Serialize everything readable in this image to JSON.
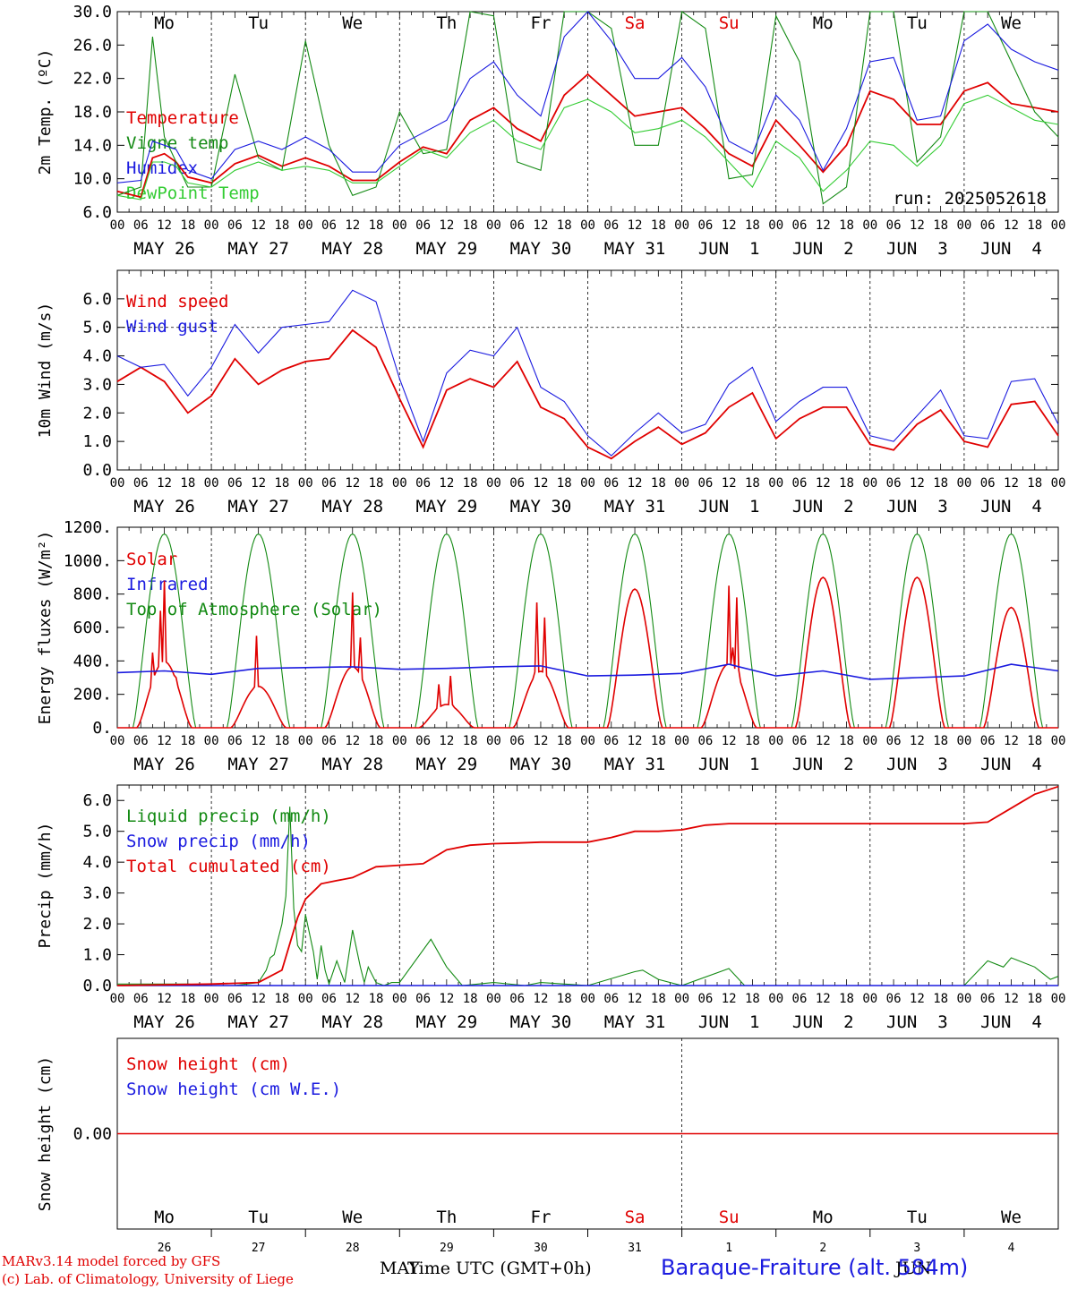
{
  "footer": {
    "model": "MARv3.14 model forced by GFS",
    "copyright": "(c) Lab. of Climatology, University of Liege",
    "xlabel": "Time UTC (GMT+0h)",
    "station": "Baraque-Fraiture (alt. 584m)",
    "month_left": "MAY",
    "month_right": "JUN"
  },
  "chart_data": [
    {
      "type": "line",
      "ylabel": "2m Temp. (ºC)",
      "ylim": [
        6,
        30
      ],
      "yticks": [
        "30.0",
        "26.0",
        "22.0",
        "18.0",
        "14.0",
        "10.0",
        "6.0"
      ],
      "annotation": "run: 2025052618",
      "weekdays": [
        "Mo",
        "Tu",
        "We",
        "Th",
        "Fr",
        "Sa",
        "Su",
        "Mo",
        "Tu",
        "We"
      ],
      "weekday_colors": [
        "#000000",
        "#000000",
        "#000000",
        "#000000",
        "#000000",
        "#e00000",
        "#e00000",
        "#000000",
        "#000000",
        "#000000"
      ],
      "date_labels": [
        "MAY 26",
        "MAY 27",
        "MAY 28",
        "MAY 29",
        "MAY 30",
        "MAY 31",
        "JUN  1",
        "JUN  2",
        "JUN  3",
        "JUN  4"
      ],
      "hour_labels": [
        "00",
        "06",
        "12",
        "18"
      ],
      "x_hours": [
        0,
        6,
        9,
        12,
        15,
        18,
        24,
        30,
        36,
        42,
        48,
        54,
        60,
        66,
        72,
        78,
        84,
        90,
        96,
        102,
        108,
        114,
        120,
        126,
        132,
        138,
        144,
        150,
        156,
        162,
        168,
        174,
        180,
        186,
        192,
        198,
        204,
        210,
        216,
        222,
        228,
        234,
        240
      ],
      "series": [
        {
          "name": "Temperature",
          "color": "#e00000",
          "values": [
            8.5,
            7.8,
            12.5,
            13.0,
            12.0,
            10.2,
            9.5,
            11.8,
            12.8,
            11.5,
            12.5,
            11.5,
            9.8,
            9.8,
            12.0,
            13.8,
            13.0,
            17.0,
            18.5,
            16.0,
            14.5,
            20.0,
            22.5,
            20.0,
            17.5,
            18.0,
            18.5,
            16.0,
            13.0,
            11.5,
            17.0,
            14.0,
            10.8,
            14.0,
            20.5,
            19.5,
            16.5,
            16.5,
            20.5,
            21.5,
            19.0,
            18.5,
            18.0
          ]
        },
        {
          "name": "Vigne temp",
          "color": "#138a13",
          "values": [
            8.0,
            9.0,
            27.0,
            15.0,
            12.0,
            9.0,
            9.0,
            22.5,
            12.5,
            11.0,
            26.5,
            14.0,
            8.0,
            9.0,
            18.0,
            13.0,
            13.5,
            30.0,
            29.5,
            12.0,
            11.0,
            30.0,
            30.0,
            28.0,
            14.0,
            14.0,
            30.0,
            28.0,
            10.0,
            10.5,
            29.5,
            24.0,
            7.0,
            9.0,
            30.0,
            30.0,
            12.0,
            15.0,
            30.0,
            30.0,
            24.0,
            18.0,
            15.0
          ]
        },
        {
          "name": "Humidex",
          "color": "#1a1adf",
          "values": [
            9.5,
            9.8,
            14.5,
            14.0,
            13.5,
            11.0,
            10.0,
            13.5,
            14.5,
            13.5,
            15.0,
            13.5,
            10.8,
            10.8,
            14.0,
            15.5,
            17.0,
            22.0,
            24.0,
            20.0,
            17.5,
            27.0,
            30.0,
            26.5,
            22.0,
            22.0,
            24.5,
            21.0,
            14.5,
            13.0,
            20.0,
            17.0,
            11.0,
            16.0,
            24.0,
            24.5,
            17.0,
            17.5,
            26.5,
            28.5,
            25.5,
            24.0,
            23.0
          ]
        },
        {
          "name": "DewPoint Temp",
          "color": "#33cc33",
          "values": [
            8.0,
            7.5,
            12.0,
            12.0,
            11.5,
            9.5,
            9.0,
            11.0,
            12.0,
            11.0,
            11.5,
            11.0,
            9.5,
            9.5,
            11.5,
            13.5,
            12.5,
            15.5,
            17.0,
            14.5,
            13.5,
            18.5,
            19.5,
            18.0,
            15.5,
            16.0,
            17.0,
            15.0,
            12.0,
            9.0,
            14.5,
            12.5,
            8.5,
            11.0,
            14.5,
            14.0,
            11.5,
            14.0,
            19.0,
            20.0,
            18.5,
            17.0,
            16.5
          ]
        }
      ]
    },
    {
      "type": "line",
      "ylabel": "10m Wind (m/s)",
      "ylim": [
        0,
        7
      ],
      "yticks": [
        "6.0",
        "5.0",
        "4.0",
        "3.0",
        "2.0",
        "1.0",
        "0.0"
      ],
      "reference_line": 5,
      "date_labels": [
        "MAY 26",
        "MAY 27",
        "MAY 28",
        "MAY 29",
        "MAY 30",
        "MAY 31",
        "JUN  1",
        "JUN  2",
        "JUN  3",
        "JUN  4"
      ],
      "hour_labels": [
        "00",
        "06",
        "12",
        "18"
      ],
      "x_hours": [
        0,
        6,
        12,
        18,
        24,
        30,
        36,
        42,
        48,
        54,
        60,
        66,
        72,
        78,
        84,
        90,
        96,
        102,
        108,
        114,
        120,
        126,
        132,
        138,
        144,
        150,
        156,
        162,
        168,
        174,
        180,
        186,
        192,
        198,
        204,
        210,
        216,
        222,
        228,
        234,
        240
      ],
      "series": [
        {
          "name": "Wind speed",
          "color": "#e00000",
          "values": [
            3.1,
            3.6,
            3.1,
            2.0,
            2.6,
            3.9,
            3.0,
            3.5,
            3.8,
            3.9,
            4.9,
            4.3,
            2.5,
            0.8,
            2.8,
            3.2,
            2.9,
            3.8,
            2.2,
            1.8,
            0.8,
            0.4,
            1.0,
            1.5,
            0.9,
            1.3,
            2.2,
            2.7,
            1.1,
            1.8,
            2.2,
            2.2,
            0.9,
            0.7,
            1.6,
            2.1,
            1.0,
            0.8,
            2.3,
            2.4,
            1.2
          ]
        },
        {
          "name": "Wind gust",
          "color": "#1a1adf",
          "values": [
            4.0,
            3.6,
            3.7,
            2.6,
            3.6,
            5.1,
            4.1,
            5.0,
            5.1,
            5.2,
            6.3,
            5.9,
            3.2,
            1.0,
            3.4,
            4.2,
            4.0,
            5.0,
            2.9,
            2.4,
            1.2,
            0.5,
            1.3,
            2.0,
            1.3,
            1.6,
            3.0,
            3.6,
            1.7,
            2.4,
            2.9,
            2.9,
            1.2,
            1.0,
            1.9,
            2.8,
            1.2,
            1.1,
            3.1,
            3.2,
            1.6
          ]
        }
      ]
    },
    {
      "type": "line",
      "ylabel": "Energy fluxes (W/m²)",
      "ylim": [
        0,
        1200
      ],
      "yticks": [
        "1200.",
        "1000.",
        "800.",
        "600.",
        "400.",
        "200.",
        "0."
      ],
      "date_labels": [
        "MAY 26",
        "MAY 27",
        "MAY 28",
        "MAY 29",
        "MAY 30",
        "MAY 31",
        "JUN  1",
        "JUN  2",
        "JUN  3",
        "JUN  4"
      ],
      "hour_labels": [
        "00",
        "06",
        "12",
        "18"
      ],
      "toa_peak": 1160,
      "series": [
        {
          "name": "Solar",
          "color": "#e00000",
          "days": [
            {
              "peak": 880,
              "spikes": [
                [
                  9,
                  450
                ],
                [
                  11,
                  700
                ],
                [
                  12,
                  880
                ],
                [
                  15,
                  300
                ]
              ]
            },
            {
              "peak": 550,
              "spikes": [
                [
                  11.5,
                  550
                ]
              ]
            },
            {
              "peak": 810,
              "spikes": [
                [
                  12,
                  810
                ],
                [
                  14,
                  540
                ]
              ]
            },
            {
              "peak": 310,
              "spikes": [
                [
                  10,
                  260
                ],
                [
                  13,
                  310
                ]
              ]
            },
            {
              "peak": 750,
              "spikes": [
                [
                  11,
                  750
                ],
                [
                  13,
                  660
                ]
              ]
            },
            {
              "peak": 830,
              "spikes": []
            },
            {
              "peak": 850,
              "spikes": [
                [
                  12,
                  850
                ],
                [
                  13,
                  480
                ],
                [
                  14,
                  780
                ]
              ]
            },
            {
              "peak": 900,
              "spikes": []
            },
            {
              "peak": 900,
              "spikes": []
            },
            {
              "peak": 720,
              "spikes": []
            }
          ]
        },
        {
          "name": "Infrared",
          "color": "#1a1adf",
          "x_hours": [
            0,
            12,
            24,
            36,
            48,
            60,
            72,
            84,
            96,
            108,
            120,
            132,
            144,
            156,
            168,
            180,
            192,
            204,
            216,
            228,
            240
          ],
          "values": [
            330,
            340,
            320,
            355,
            360,
            365,
            350,
            355,
            365,
            370,
            310,
            315,
            325,
            380,
            310,
            340,
            290,
            300,
            310,
            380,
            340
          ]
        },
        {
          "name": "Top of Atmosphere (Solar)",
          "color": "#138a13"
        }
      ]
    },
    {
      "type": "line",
      "ylabel": "Precip (mm/h)",
      "ylim": [
        0,
        6.5
      ],
      "yticks": [
        "6.0",
        "5.0",
        "4.0",
        "3.0",
        "2.0",
        "1.0",
        "0.0"
      ],
      "date_labels": [
        "MAY 26",
        "MAY 27",
        "MAY 28",
        "MAY 29",
        "MAY 30",
        "MAY 31",
        "JUN  1",
        "JUN  2",
        "JUN  3",
        "JUN  4"
      ],
      "hour_labels": [
        "00",
        "06",
        "12",
        "18"
      ],
      "series": [
        {
          "name": "Liquid precip (mm/h)",
          "color": "#138a13",
          "x_hours": [
            0,
            6,
            12,
            18,
            24,
            30,
            36,
            38,
            39,
            40,
            42,
            43,
            44,
            45,
            46,
            47,
            48,
            50,
            51,
            52,
            53,
            54,
            56,
            58,
            60,
            62,
            63,
            64,
            66,
            68,
            70,
            72,
            80,
            84,
            88,
            96,
            104,
            108,
            120,
            132,
            134,
            138,
            144,
            156,
            160,
            168,
            180,
            192,
            204,
            216,
            222,
            226,
            228,
            234,
            238,
            240
          ],
          "values": [
            0.05,
            0.05,
            0.05,
            0.05,
            0.0,
            0.0,
            0.1,
            0.5,
            0.9,
            1.0,
            2.0,
            2.9,
            5.8,
            2.5,
            1.3,
            1.1,
            2.3,
            1.1,
            0.2,
            1.3,
            0.5,
            0.05,
            0.8,
            0.1,
            1.8,
            0.6,
            0.1,
            0.6,
            0.1,
            0.0,
            0.1,
            0.1,
            1.5,
            0.6,
            0.0,
            0.1,
            0.0,
            0.1,
            0.0,
            0.45,
            0.5,
            0.2,
            0.0,
            0.55,
            0.0,
            0.0,
            0.0,
            0.0,
            0.0,
            0.0,
            0.8,
            0.6,
            0.9,
            0.6,
            0.2,
            0.3
          ]
        },
        {
          "name": "Snow precip (mm/h)",
          "color": "#1a1adf",
          "values": [
            0.0,
            0.0
          ]
        },
        {
          "name": "Total cumulated (cm)",
          "color": "#e00000",
          "x_hours": [
            0,
            24,
            36,
            42,
            46,
            48,
            52,
            56,
            60,
            66,
            72,
            78,
            84,
            90,
            96,
            102,
            108,
            114,
            120,
            126,
            132,
            138,
            144,
            150,
            156,
            168,
            180,
            192,
            204,
            216,
            222,
            228,
            234,
            240
          ],
          "values": [
            0.0,
            0.05,
            0.1,
            0.5,
            2.2,
            2.8,
            3.3,
            3.4,
            3.5,
            3.85,
            3.9,
            3.95,
            4.4,
            4.55,
            4.6,
            4.62,
            4.65,
            4.65,
            4.65,
            4.8,
            5.0,
            5.0,
            5.05,
            5.2,
            5.25,
            5.25,
            5.25,
            5.25,
            5.25,
            5.25,
            5.3,
            5.75,
            6.2,
            6.45
          ]
        }
      ]
    },
    {
      "type": "line",
      "ylabel": "Snow height (cm)",
      "ylim": [
        -1,
        1
      ],
      "yticks": [
        "0.00"
      ],
      "weekdays": [
        "Mo",
        "Tu",
        "We",
        "Th",
        "Fr",
        "Sa",
        "Su",
        "Mo",
        "Tu",
        "We"
      ],
      "weekday_colors": [
        "#000000",
        "#000000",
        "#000000",
        "#000000",
        "#000000",
        "#e00000",
        "#e00000",
        "#000000",
        "#000000",
        "#000000"
      ],
      "day_numbers": [
        "26",
        "27",
        "28",
        "29",
        "30",
        "31",
        "1",
        "2",
        "3",
        "4"
      ],
      "series": [
        {
          "name": "Snow height (cm)",
          "color": "#e00000",
          "values": [
            0,
            0
          ]
        },
        {
          "name": "Snow height (cm W.E.)",
          "color": "#1a1adf",
          "values": [
            0,
            0
          ]
        }
      ]
    }
  ]
}
